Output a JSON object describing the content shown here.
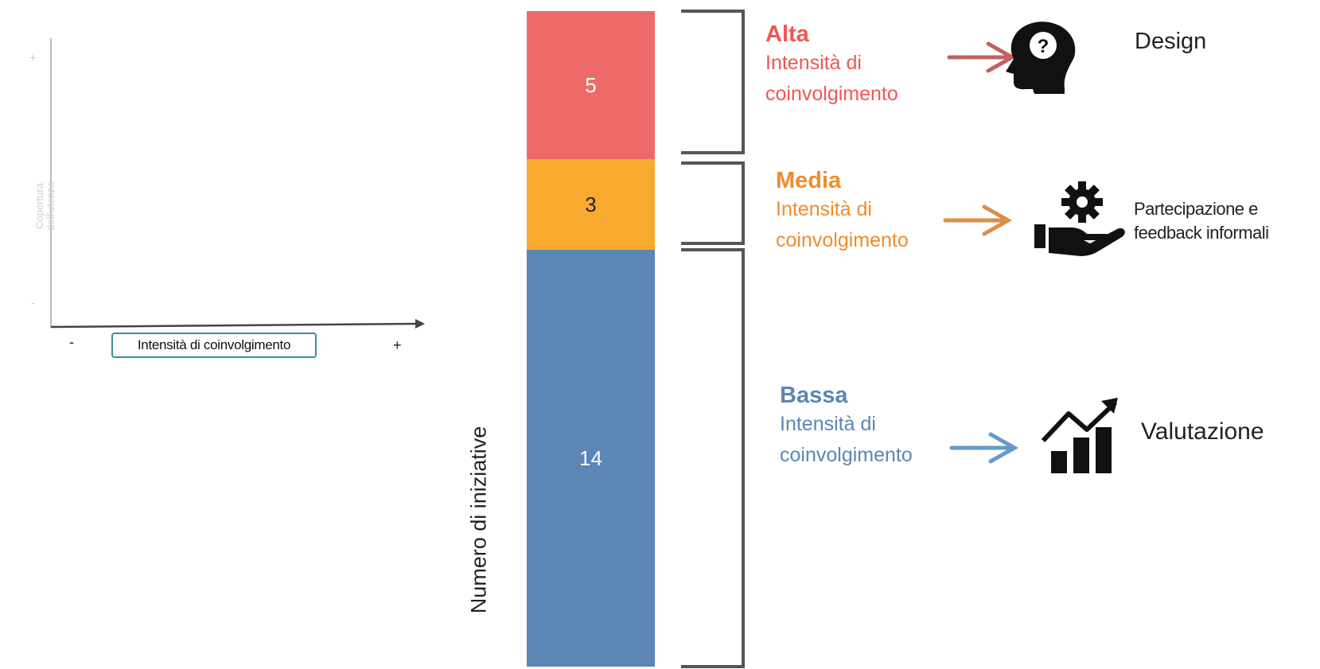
{
  "mini_chart": {
    "y_label_line1": "Copertura",
    "y_label_line2": "dell'utenza",
    "y_tick_top": "+",
    "y_tick_bottom": "-",
    "x_label": "Intensità di coinvolgimento",
    "x_tick_left": "-",
    "x_tick_right": "+"
  },
  "bar": {
    "axis_label": "Numero di iniziative",
    "segments": [
      {
        "level": "Alta",
        "value": 5,
        "color": "#ee6a68"
      },
      {
        "level": "Media",
        "value": 3,
        "color": "#f7aa2e"
      },
      {
        "level": "Bassa",
        "value": 14,
        "color": "#5b86b5"
      }
    ]
  },
  "levels": {
    "alta": {
      "title": "Alta",
      "line1": "Intensità di",
      "line2": "coinvolgimento",
      "color": "#ee5753"
    },
    "media": {
      "title": "Media",
      "line1": "Intensità di",
      "line2": "coinvolgimento",
      "color": "#f08c2c"
    },
    "bassa": {
      "title": "Bassa",
      "line1": "Intensità di",
      "line2": "coinvolgimento",
      "color": "#5b86b5"
    }
  },
  "outcomes": {
    "alta": {
      "label": "Design",
      "icon": "head-question-icon"
    },
    "media": {
      "label_line1": "Partecipazione e",
      "label_line2": "feedback informali",
      "icon": "hand-gear-icon"
    },
    "bassa": {
      "label": "Valutazione",
      "icon": "chart-growth-icon"
    }
  }
}
